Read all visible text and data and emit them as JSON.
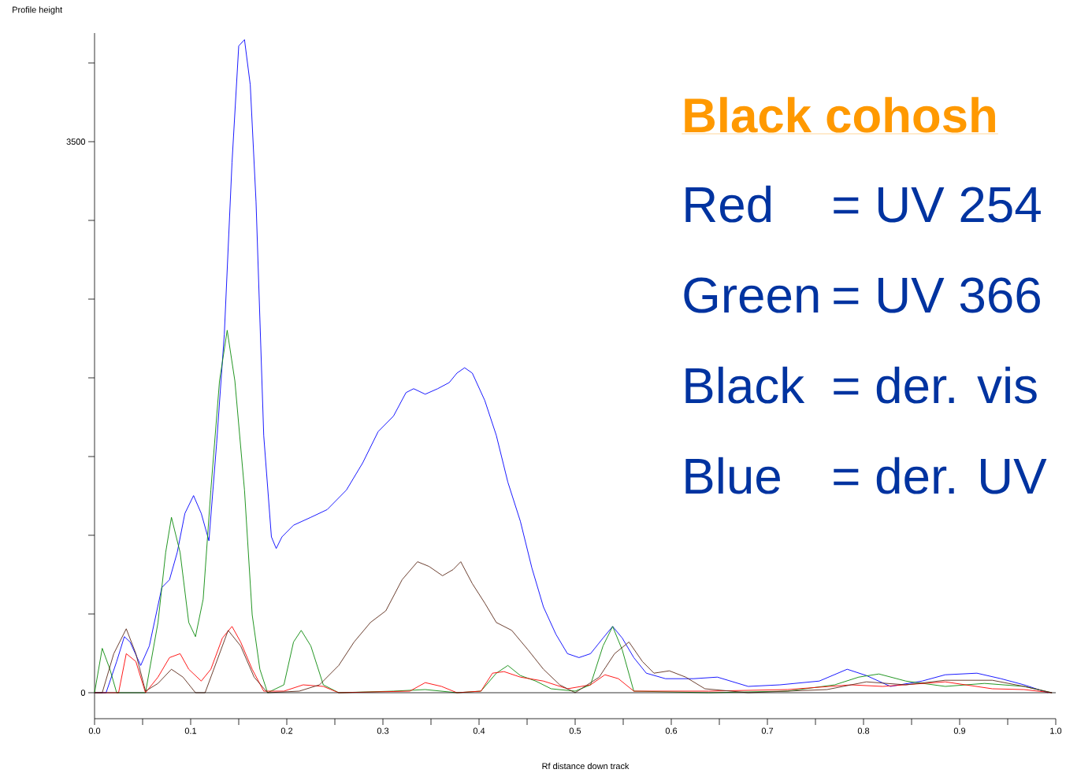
{
  "chart_data": {
    "type": "line",
    "title": "Black cohosh",
    "xlabel": "Rf distance down track",
    "ylabel": "Profile height",
    "xlim": [
      0,
      1
    ],
    "ylim": [
      -165,
      4190
    ],
    "xticks": [
      {
        "value": 0,
        "label": "0.0"
      },
      {
        "value": 0.05,
        "label": null
      },
      0.1,
      {
        "value": 0.15,
        "label": null
      },
      0.2,
      {
        "value": 0.25,
        "label": null
      },
      0.3,
      {
        "value": 0.35,
        "label": null
      },
      0.4,
      {
        "value": 0.45,
        "label": null
      },
      0.5,
      {
        "value": 0.55,
        "label": null
      },
      0.6,
      {
        "value": 0.65,
        "label": null
      },
      0.7,
      {
        "value": 0.75,
        "label": null
      },
      0.8,
      {
        "value": 0.85,
        "label": null
      },
      0.9,
      {
        "value": 0.95,
        "label": null
      },
      {
        "value": 1,
        "label": "1.0"
      }
    ],
    "yticks": [
      0,
      {
        "value": 500,
        "label": null
      },
      {
        "value": 1000,
        "label": null
      },
      {
        "value": 1500,
        "label": null
      },
      {
        "value": 2000,
        "label": null
      },
      {
        "value": 2500,
        "label": null
      },
      {
        "value": 3000,
        "label": null
      },
      3500,
      {
        "value": 4000,
        "label": null
      }
    ],
    "ref_lines": [
      {
        "axis": "y",
        "value": 0,
        "color": "#000000"
      }
    ],
    "annotations": [
      "Red",
      "= UV 254",
      "Green",
      "= UV 366",
      "Black",
      "= der. vis",
      "Blue",
      "= der. UV"
    ],
    "series": [
      {
        "color": "#0000ff",
        "x": [
          0,
          0.012,
          0.023,
          0.031,
          0.037,
          0.048,
          0.057,
          0.07,
          0.078,
          0.086,
          0.094,
          0.103,
          0.111,
          0.119,
          0.127,
          0.135,
          0.143,
          0.15,
          0.156,
          0.162,
          0.168,
          0.176,
          0.184,
          0.189,
          0.195,
          0.207,
          0.225,
          0.242,
          0.262,
          0.279,
          0.295,
          0.311,
          0.324,
          0.332,
          0.344,
          0.357,
          0.369,
          0.377,
          0.385,
          0.393,
          0.406,
          0.418,
          0.43,
          0.443,
          0.455,
          0.467,
          0.48,
          0.492,
          0.504,
          0.516,
          0.529,
          0.539,
          0.549,
          0.561,
          0.574,
          0.594,
          0.623,
          0.648,
          0.68,
          0.713,
          0.754,
          0.783,
          0.803,
          0.828,
          0.861,
          0.885,
          0.918,
          0.943,
          0.967,
          0.992
        ],
        "values": [
          0,
          0,
          198,
          356,
          322,
          173,
          297,
          668,
          718,
          891,
          1139,
          1252,
          1139,
          965,
          1584,
          2277,
          3366,
          4108,
          4148,
          3861,
          3119,
          1634,
          990,
          916,
          990,
          1064,
          1114,
          1163,
          1287,
          1460,
          1658,
          1757,
          1906,
          1931,
          1896,
          1931,
          1970,
          2030,
          2064,
          2030,
          1856,
          1634,
          1337,
          1089,
          792,
          545,
          371,
          248,
          223,
          248,
          347,
          421,
          347,
          223,
          124,
          89,
          89,
          99,
          40,
          50,
          74,
          149,
          109,
          40,
          74,
          114,
          124,
          89,
          50,
          0
        ]
      },
      {
        "color": "#0a8a0a",
        "x": [
          0,
          0.008,
          0.016,
          0.023,
          0.053,
          0.066,
          0.074,
          0.08,
          0.089,
          0.098,
          0.105,
          0.113,
          0.121,
          0.13,
          0.138,
          0.146,
          0.156,
          0.164,
          0.172,
          0.18,
          0.197,
          0.207,
          0.215,
          0.225,
          0.238,
          0.254,
          0.311,
          0.344,
          0.377,
          0.402,
          0.418,
          0.43,
          0.443,
          0.459,
          0.475,
          0.5,
          0.516,
          0.529,
          0.539,
          0.549,
          0.561,
          0.639,
          0.721,
          0.77,
          0.795,
          0.816,
          0.844,
          0.885,
          0.926,
          0.967,
          0.996
        ],
        "values": [
          0,
          282,
          149,
          0,
          0,
          446,
          891,
          1114,
          891,
          446,
          356,
          594,
          1287,
          1980,
          2302,
          1980,
          1287,
          495,
          149,
          0,
          50,
          322,
          396,
          297,
          50,
          0,
          10,
          20,
          0,
          10,
          124,
          173,
          109,
          74,
          25,
          10,
          50,
          297,
          421,
          272,
          10,
          0,
          10,
          50,
          99,
          119,
          74,
          40,
          59,
          40,
          0
        ]
      },
      {
        "color": "#ff0000",
        "x": [
          0,
          0.025,
          0.033,
          0.043,
          0.053,
          0.066,
          0.078,
          0.089,
          0.098,
          0.111,
          0.121,
          0.133,
          0.143,
          0.152,
          0.164,
          0.176,
          0.197,
          0.217,
          0.238,
          0.254,
          0.328,
          0.344,
          0.361,
          0.377,
          0.402,
          0.414,
          0.426,
          0.443,
          0.467,
          0.492,
          0.516,
          0.531,
          0.545,
          0.561,
          0.639,
          0.721,
          0.787,
          0.82,
          0.885,
          0.934,
          0.967,
          0.996
        ],
        "values": [
          0,
          0,
          248,
          198,
          0,
          99,
          223,
          248,
          149,
          74,
          149,
          347,
          421,
          322,
          149,
          10,
          10,
          50,
          40,
          0,
          10,
          64,
          40,
          0,
          10,
          124,
          134,
          99,
          74,
          25,
          50,
          114,
          89,
          10,
          10,
          20,
          50,
          40,
          69,
          25,
          20,
          0
        ]
      },
      {
        "color": "#5c2a1a",
        "x": [
          0,
          0.008,
          0.02,
          0.033,
          0.043,
          0.053,
          0.066,
          0.08,
          0.092,
          0.105,
          0.115,
          0.127,
          0.139,
          0.152,
          0.166,
          0.18,
          0.213,
          0.234,
          0.254,
          0.27,
          0.287,
          0.303,
          0.32,
          0.336,
          0.348,
          0.362,
          0.373,
          0.381,
          0.393,
          0.406,
          0.418,
          0.434,
          0.451,
          0.467,
          0.484,
          0.5,
          0.525,
          0.541,
          0.556,
          0.57,
          0.582,
          0.598,
          0.615,
          0.635,
          0.68,
          0.762,
          0.803,
          0.844,
          0.885,
          0.934,
          0.967,
          0.996
        ],
        "values": [
          0,
          0,
          248,
          406,
          248,
          10,
          59,
          149,
          99,
          0,
          0,
          198,
          396,
          297,
          99,
          0,
          10,
          50,
          173,
          322,
          446,
          520,
          718,
          832,
          802,
          743,
          782,
          832,
          693,
          569,
          446,
          396,
          272,
          149,
          50,
          0,
          99,
          248,
          322,
          198,
          124,
          139,
          99,
          25,
          0,
          20,
          69,
          50,
          79,
          79,
          40,
          0
        ]
      }
    ]
  }
}
